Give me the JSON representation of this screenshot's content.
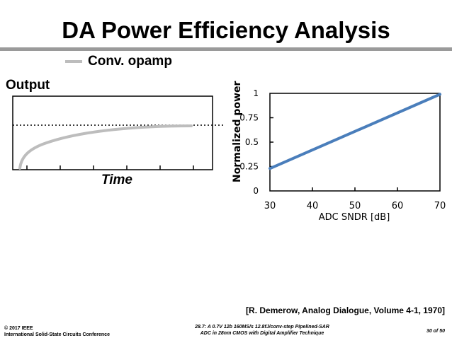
{
  "title": "DA Power Efficiency Analysis",
  "legend": {
    "label": "Conv. opamp",
    "color": "#bdbdbd"
  },
  "left_plot": {
    "ylabel": "Output",
    "xlabel": "Time",
    "curve_color": "#bdbdbd"
  },
  "chart_data": {
    "type": "line",
    "title": "",
    "xlabel": "ADC SNDR [dB]",
    "ylabel": "Normalized power",
    "xlim": [
      30,
      70
    ],
    "ylim": [
      0,
      1
    ],
    "x_ticks": [
      30,
      40,
      50,
      60,
      70
    ],
    "y_ticks": [
      0,
      0.25,
      0.5,
      0.75,
      1
    ],
    "x_tick_labels": [
      "30",
      "40",
      "50",
      "60",
      "70"
    ],
    "y_tick_labels": [
      "0",
      "0.25",
      "0.5",
      "0.75",
      "1"
    ],
    "series": [
      {
        "name": "Normalized power",
        "x": [
          30,
          70
        ],
        "y": [
          0.23,
          0.99
        ],
        "color": "#4a7ebb"
      }
    ]
  },
  "citation": "[R. Demerow, Analog Dialogue, Volume 4-1, 1970]",
  "footer": {
    "left_line1": "© 2017 IEEE",
    "left_line2": "International Solid-State Circuits Conference",
    "mid_line1": "28.7: A 0.7V 12b 160MS/s 12.8fJ/conv-step Pipelined-SAR",
    "mid_line2": "ADC in 28nm CMOS with Digital Amplifier Technique",
    "page": "30 of 50"
  }
}
